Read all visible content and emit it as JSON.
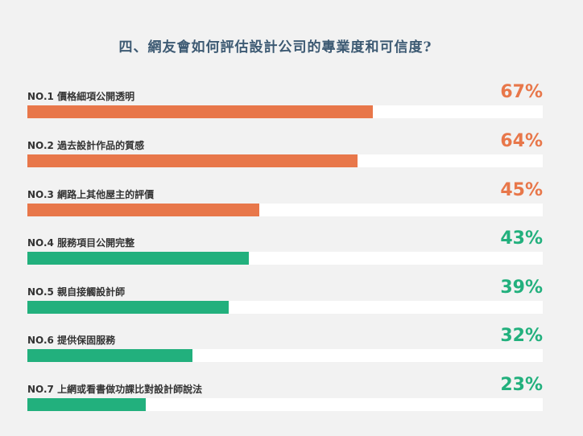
{
  "chart_data": {
    "type": "bar",
    "orientation": "horizontal",
    "title": "四、網友會如何評估設計公司的專業度和可信度?",
    "xlim": [
      0,
      100
    ],
    "unit": "%",
    "colors": {
      "orange": "#e8774a",
      "green": "#22b07d"
    },
    "items": [
      {
        "label": "NO.1 價格細項公開透明",
        "value": 67,
        "pct_label": "67%",
        "color": "#e8774a"
      },
      {
        "label": "NO.2 過去設計作品的質感",
        "value": 64,
        "pct_label": "64%",
        "color": "#e8774a"
      },
      {
        "label": "NO.3 網路上其他屋主的評價",
        "value": 45,
        "pct_label": "45%",
        "color": "#e8774a"
      },
      {
        "label": "NO.4 服務項目公開完整",
        "value": 43,
        "pct_label": "43%",
        "color": "#22b07d"
      },
      {
        "label": "NO.5 親自接觸設計師",
        "value": 39,
        "pct_label": "39%",
        "color": "#22b07d"
      },
      {
        "label": "NO.6 提供保固服務",
        "value": 32,
        "pct_label": "32%",
        "color": "#22b07d"
      },
      {
        "label": "NO.7 上網或看書做功課比對設計師說法",
        "value": 23,
        "pct_label": "23%",
        "color": "#22b07d"
      }
    ]
  }
}
